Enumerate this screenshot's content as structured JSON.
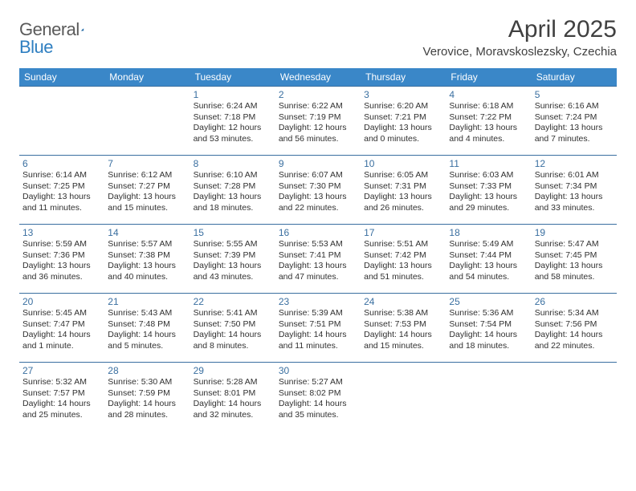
{
  "brand": {
    "part1": "General",
    "part2": "Blue"
  },
  "title": "April 2025",
  "location": "Verovice, Moravskoslezsky, Czechia",
  "colors": {
    "header_bg": "#3a87c8",
    "header_text": "#ffffff",
    "row_border": "#3a6fa0",
    "daynum": "#3a6fa0",
    "body_text": "#303030",
    "brand_gray": "#5a5a5a",
    "brand_blue": "#2f7fc1",
    "page_bg": "#ffffff"
  },
  "typography": {
    "title_fontsize": 30,
    "location_fontsize": 15,
    "dayheader_fontsize": 12,
    "daynum_fontsize": 12,
    "cell_fontsize": 10.5
  },
  "day_headers": [
    "Sunday",
    "Monday",
    "Tuesday",
    "Wednesday",
    "Thursday",
    "Friday",
    "Saturday"
  ],
  "weeks": [
    [
      null,
      null,
      {
        "n": "1",
        "sr": "Sunrise: 6:24 AM",
        "ss": "Sunset: 7:18 PM",
        "dl": "Daylight: 12 hours and 53 minutes."
      },
      {
        "n": "2",
        "sr": "Sunrise: 6:22 AM",
        "ss": "Sunset: 7:19 PM",
        "dl": "Daylight: 12 hours and 56 minutes."
      },
      {
        "n": "3",
        "sr": "Sunrise: 6:20 AM",
        "ss": "Sunset: 7:21 PM",
        "dl": "Daylight: 13 hours and 0 minutes."
      },
      {
        "n": "4",
        "sr": "Sunrise: 6:18 AM",
        "ss": "Sunset: 7:22 PM",
        "dl": "Daylight: 13 hours and 4 minutes."
      },
      {
        "n": "5",
        "sr": "Sunrise: 6:16 AM",
        "ss": "Sunset: 7:24 PM",
        "dl": "Daylight: 13 hours and 7 minutes."
      }
    ],
    [
      {
        "n": "6",
        "sr": "Sunrise: 6:14 AM",
        "ss": "Sunset: 7:25 PM",
        "dl": "Daylight: 13 hours and 11 minutes."
      },
      {
        "n": "7",
        "sr": "Sunrise: 6:12 AM",
        "ss": "Sunset: 7:27 PM",
        "dl": "Daylight: 13 hours and 15 minutes."
      },
      {
        "n": "8",
        "sr": "Sunrise: 6:10 AM",
        "ss": "Sunset: 7:28 PM",
        "dl": "Daylight: 13 hours and 18 minutes."
      },
      {
        "n": "9",
        "sr": "Sunrise: 6:07 AM",
        "ss": "Sunset: 7:30 PM",
        "dl": "Daylight: 13 hours and 22 minutes."
      },
      {
        "n": "10",
        "sr": "Sunrise: 6:05 AM",
        "ss": "Sunset: 7:31 PM",
        "dl": "Daylight: 13 hours and 26 minutes."
      },
      {
        "n": "11",
        "sr": "Sunrise: 6:03 AM",
        "ss": "Sunset: 7:33 PM",
        "dl": "Daylight: 13 hours and 29 minutes."
      },
      {
        "n": "12",
        "sr": "Sunrise: 6:01 AM",
        "ss": "Sunset: 7:34 PM",
        "dl": "Daylight: 13 hours and 33 minutes."
      }
    ],
    [
      {
        "n": "13",
        "sr": "Sunrise: 5:59 AM",
        "ss": "Sunset: 7:36 PM",
        "dl": "Daylight: 13 hours and 36 minutes."
      },
      {
        "n": "14",
        "sr": "Sunrise: 5:57 AM",
        "ss": "Sunset: 7:38 PM",
        "dl": "Daylight: 13 hours and 40 minutes."
      },
      {
        "n": "15",
        "sr": "Sunrise: 5:55 AM",
        "ss": "Sunset: 7:39 PM",
        "dl": "Daylight: 13 hours and 43 minutes."
      },
      {
        "n": "16",
        "sr": "Sunrise: 5:53 AM",
        "ss": "Sunset: 7:41 PM",
        "dl": "Daylight: 13 hours and 47 minutes."
      },
      {
        "n": "17",
        "sr": "Sunrise: 5:51 AM",
        "ss": "Sunset: 7:42 PM",
        "dl": "Daylight: 13 hours and 51 minutes."
      },
      {
        "n": "18",
        "sr": "Sunrise: 5:49 AM",
        "ss": "Sunset: 7:44 PM",
        "dl": "Daylight: 13 hours and 54 minutes."
      },
      {
        "n": "19",
        "sr": "Sunrise: 5:47 AM",
        "ss": "Sunset: 7:45 PM",
        "dl": "Daylight: 13 hours and 58 minutes."
      }
    ],
    [
      {
        "n": "20",
        "sr": "Sunrise: 5:45 AM",
        "ss": "Sunset: 7:47 PM",
        "dl": "Daylight: 14 hours and 1 minute."
      },
      {
        "n": "21",
        "sr": "Sunrise: 5:43 AM",
        "ss": "Sunset: 7:48 PM",
        "dl": "Daylight: 14 hours and 5 minutes."
      },
      {
        "n": "22",
        "sr": "Sunrise: 5:41 AM",
        "ss": "Sunset: 7:50 PM",
        "dl": "Daylight: 14 hours and 8 minutes."
      },
      {
        "n": "23",
        "sr": "Sunrise: 5:39 AM",
        "ss": "Sunset: 7:51 PM",
        "dl": "Daylight: 14 hours and 11 minutes."
      },
      {
        "n": "24",
        "sr": "Sunrise: 5:38 AM",
        "ss": "Sunset: 7:53 PM",
        "dl": "Daylight: 14 hours and 15 minutes."
      },
      {
        "n": "25",
        "sr": "Sunrise: 5:36 AM",
        "ss": "Sunset: 7:54 PM",
        "dl": "Daylight: 14 hours and 18 minutes."
      },
      {
        "n": "26",
        "sr": "Sunrise: 5:34 AM",
        "ss": "Sunset: 7:56 PM",
        "dl": "Daylight: 14 hours and 22 minutes."
      }
    ],
    [
      {
        "n": "27",
        "sr": "Sunrise: 5:32 AM",
        "ss": "Sunset: 7:57 PM",
        "dl": "Daylight: 14 hours and 25 minutes."
      },
      {
        "n": "28",
        "sr": "Sunrise: 5:30 AM",
        "ss": "Sunset: 7:59 PM",
        "dl": "Daylight: 14 hours and 28 minutes."
      },
      {
        "n": "29",
        "sr": "Sunrise: 5:28 AM",
        "ss": "Sunset: 8:01 PM",
        "dl": "Daylight: 14 hours and 32 minutes."
      },
      {
        "n": "30",
        "sr": "Sunrise: 5:27 AM",
        "ss": "Sunset: 8:02 PM",
        "dl": "Daylight: 14 hours and 35 minutes."
      },
      null,
      null,
      null
    ]
  ]
}
